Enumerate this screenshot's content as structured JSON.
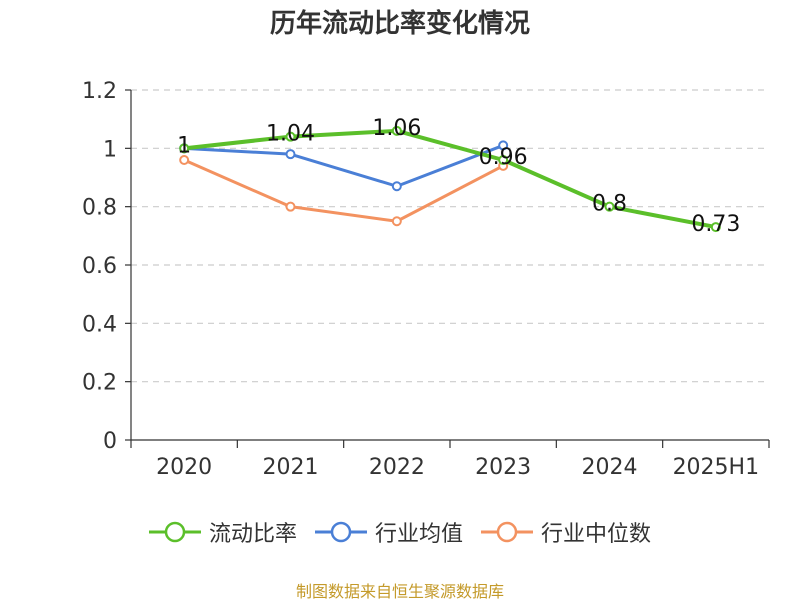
{
  "chart_data": {
    "type": "line",
    "title": "历年流动比率变化情况",
    "categories": [
      "2020",
      "2021",
      "2022",
      "2023",
      "2024",
      "2025H1"
    ],
    "ylim": [
      0,
      1.2
    ],
    "yticks": [
      "0",
      "0.2",
      "0.4",
      "0.6",
      "0.8",
      "1",
      "1.2"
    ],
    "grid": true,
    "legend_position": "bottom",
    "series": [
      {
        "name": "流动比率",
        "color": "#5bbf2a",
        "values": [
          1.0,
          1.04,
          1.06,
          0.96,
          0.8,
          0.73
        ],
        "labels": [
          "1",
          "1.04",
          "1.06",
          "0.96",
          "0.8",
          "0.73"
        ]
      },
      {
        "name": "行业均值",
        "color": "#4a7fd6",
        "values": [
          1.0,
          0.98,
          0.87,
          1.01,
          null,
          null
        ]
      },
      {
        "name": "行业中位数",
        "color": "#f39260",
        "values": [
          0.96,
          0.8,
          0.75,
          0.94,
          null,
          null
        ]
      }
    ]
  },
  "footer": "制图数据来自恒生聚源数据库"
}
